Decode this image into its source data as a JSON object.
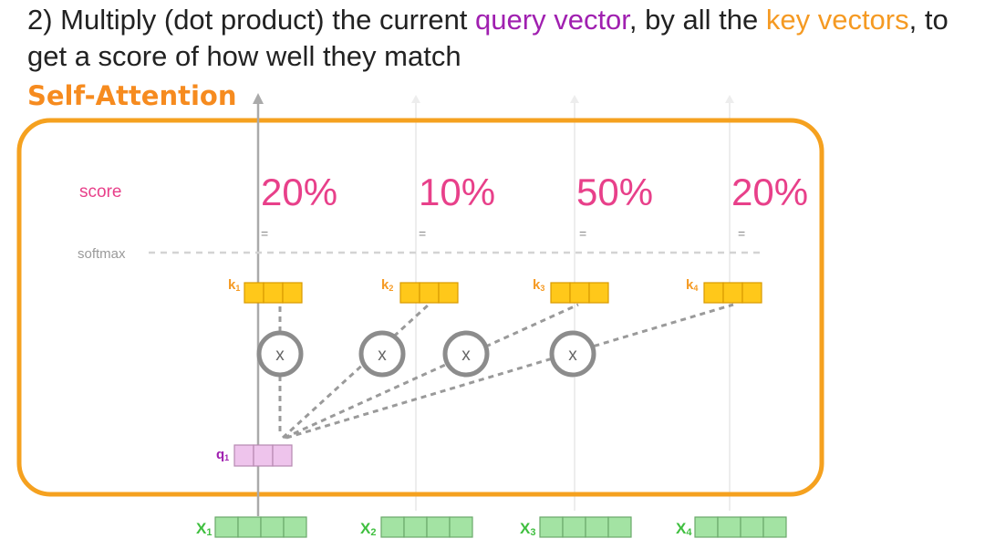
{
  "caption": {
    "prefix": "2) Multiply (dot product) the current ",
    "query_term": "query vector",
    "middle": ", by all the ",
    "key_term": "key vectors",
    "suffix": ", to get a score of how well they match"
  },
  "panel_title": "Self-Attention",
  "row_labels": {
    "score": "score",
    "softmax": "softmax"
  },
  "equals_sign": "=",
  "multiply_sign": "x",
  "scores": [
    "20%",
    "10%",
    "50%",
    "20%"
  ],
  "keys": [
    {
      "label": "k",
      "index": "1"
    },
    {
      "label": "k",
      "index": "2"
    },
    {
      "label": "k",
      "index": "3"
    },
    {
      "label": "k",
      "index": "4"
    }
  ],
  "query": {
    "label": "q",
    "index": "1"
  },
  "inputs": [
    {
      "label": "x",
      "index": "1"
    },
    {
      "label": "x",
      "index": "2"
    },
    {
      "label": "x",
      "index": "3"
    },
    {
      "label": "x",
      "index": "4"
    }
  ],
  "colors": {
    "query": "#a020b0",
    "key": "#f59a23",
    "score": "#e8408a",
    "panel_border": "#f5a11f",
    "key_cell": "#ffc81a",
    "query_cell": "#eec4ec",
    "input_cell": "#a3e3a3",
    "input_label": "#3fbf3f",
    "multiply_node": "#8c8c8c"
  }
}
